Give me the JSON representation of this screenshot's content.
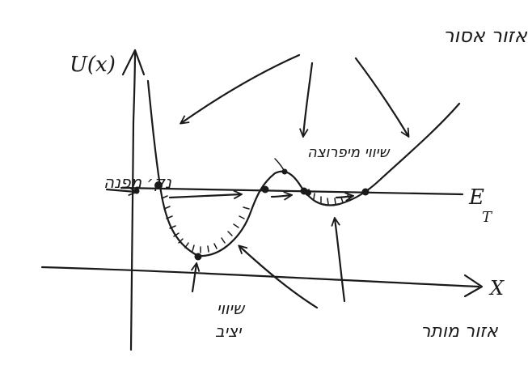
{
  "axes": {
    "y_label": "U(x)",
    "x_label": "X",
    "energy_label": "E",
    "energy_subscript": "T"
  },
  "annotations": {
    "forbidden_region": "אזור אסור",
    "turning_point": "נק׳ מפנה",
    "stable_equilibrium_line1": "שיווי",
    "stable_equilibrium_line2": "יציב",
    "unstable_equilibrium": "שיווי מיפרוצה",
    "allowed_region": "אזור מותר"
  }
}
